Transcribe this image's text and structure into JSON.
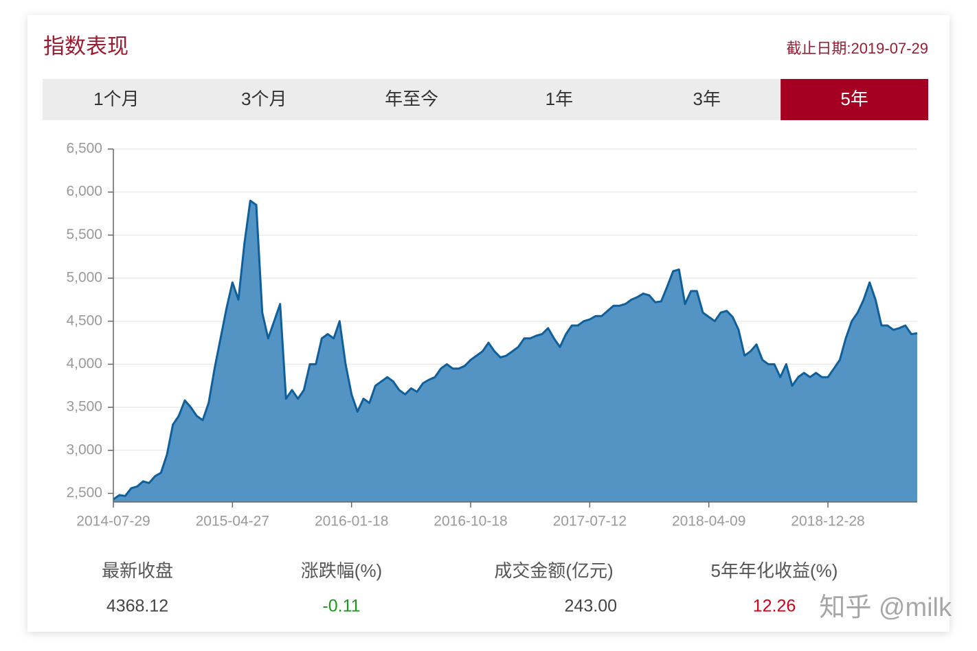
{
  "header": {
    "title": "指数表现",
    "date": "截止日期:2019-07-29"
  },
  "tabs": [
    {
      "label": "1个月"
    },
    {
      "label": "3个月"
    },
    {
      "label": "年至今"
    },
    {
      "label": "1年"
    },
    {
      "label": "3年"
    },
    {
      "label": "5年",
      "active": true
    }
  ],
  "chart_data": {
    "type": "area",
    "color": "#0e5f9a",
    "fill": "#5394c4",
    "grid": true,
    "categories": [
      "2014-07-29",
      null,
      null,
      null,
      null,
      null,
      null,
      null,
      null,
      null,
      null,
      null,
      null,
      null,
      null,
      null,
      null,
      null,
      null,
      null,
      "2015-04-27",
      null,
      null,
      null,
      null,
      null,
      null,
      null,
      null,
      null,
      null,
      null,
      null,
      null,
      null,
      null,
      null,
      null,
      null,
      null,
      "2016-01-18",
      null,
      null,
      null,
      null,
      null,
      null,
      null,
      null,
      null,
      null,
      null,
      null,
      null,
      null,
      null,
      null,
      null,
      null,
      null,
      "2016-10-18",
      null,
      null,
      null,
      null,
      null,
      null,
      null,
      null,
      null,
      null,
      null,
      null,
      null,
      null,
      null,
      null,
      null,
      null,
      null,
      "2017-07-12",
      null,
      null,
      null,
      null,
      null,
      null,
      null,
      null,
      null,
      null,
      null,
      null,
      null,
      null,
      null,
      null,
      null,
      null,
      null,
      "2018-04-09",
      null,
      null,
      null,
      null,
      null,
      null,
      null,
      null,
      null,
      null,
      null,
      null,
      null,
      null,
      null,
      null,
      null,
      null,
      null,
      "2018-12-28",
      null,
      null,
      null,
      null,
      null,
      null,
      null,
      null,
      null,
      null,
      null,
      null,
      null,
      null,
      null
    ],
    "values": [
      2430,
      2480,
      2470,
      2560,
      2580,
      2640,
      2620,
      2700,
      2740,
      2950,
      3300,
      3400,
      3580,
      3500,
      3400,
      3350,
      3550,
      3950,
      4300,
      4650,
      4950,
      4750,
      5400,
      5900,
      5850,
      4600,
      4300,
      4500,
      4700,
      3600,
      3700,
      3600,
      3700,
      4000,
      4000,
      4300,
      4350,
      4300,
      4500,
      4000,
      3650,
      3450,
      3600,
      3550,
      3750,
      3800,
      3850,
      3800,
      3700,
      3650,
      3720,
      3680,
      3780,
      3820,
      3850,
      3950,
      4000,
      3950,
      3950,
      3980,
      4050,
      4100,
      4150,
      4250,
      4150,
      4080,
      4100,
      4150,
      4200,
      4300,
      4300,
      4330,
      4350,
      4420,
      4300,
      4200,
      4350,
      4450,
      4450,
      4500,
      4520,
      4560,
      4560,
      4620,
      4680,
      4680,
      4700,
      4750,
      4780,
      4820,
      4800,
      4720,
      4730,
      4900,
      5080,
      5100,
      4700,
      4850,
      4850,
      4600,
      4550,
      4500,
      4600,
      4620,
      4550,
      4400,
      4100,
      4150,
      4230,
      4050,
      4000,
      4000,
      3850,
      4000,
      3750,
      3850,
      3900,
      3850,
      3900,
      3850,
      3850,
      3950,
      4050,
      4300,
      4500,
      4600,
      4750,
      4950,
      4750,
      4450,
      4450,
      4400,
      4420,
      4450,
      4350,
      4360
    ],
    "ylim": [
      2400,
      6500
    ],
    "yticks": [
      {
        "value": 2500,
        "label": "2,500"
      },
      {
        "value": 3000,
        "label": "3,000"
      },
      {
        "value": 3500,
        "label": "3,500"
      },
      {
        "value": 4000,
        "label": "4,000"
      },
      {
        "value": 4500,
        "label": "4,500"
      },
      {
        "value": 5000,
        "label": "5,000"
      },
      {
        "value": 5500,
        "label": "5,500"
      },
      {
        "value": 6000,
        "label": "6,000"
      },
      {
        "value": 6500,
        "label": "6,500"
      }
    ]
  },
  "stats": [
    {
      "label": "最新收盘",
      "value": "4368.12"
    },
    {
      "label": "涨跌幅(%)",
      "value": "-0.11"
    },
    {
      "label": "成交金额(亿元)",
      "value": "243.00"
    },
    {
      "label": "5年年化收益(%)",
      "value": "12.26"
    }
  ],
  "watermark": "知乎 @milk"
}
